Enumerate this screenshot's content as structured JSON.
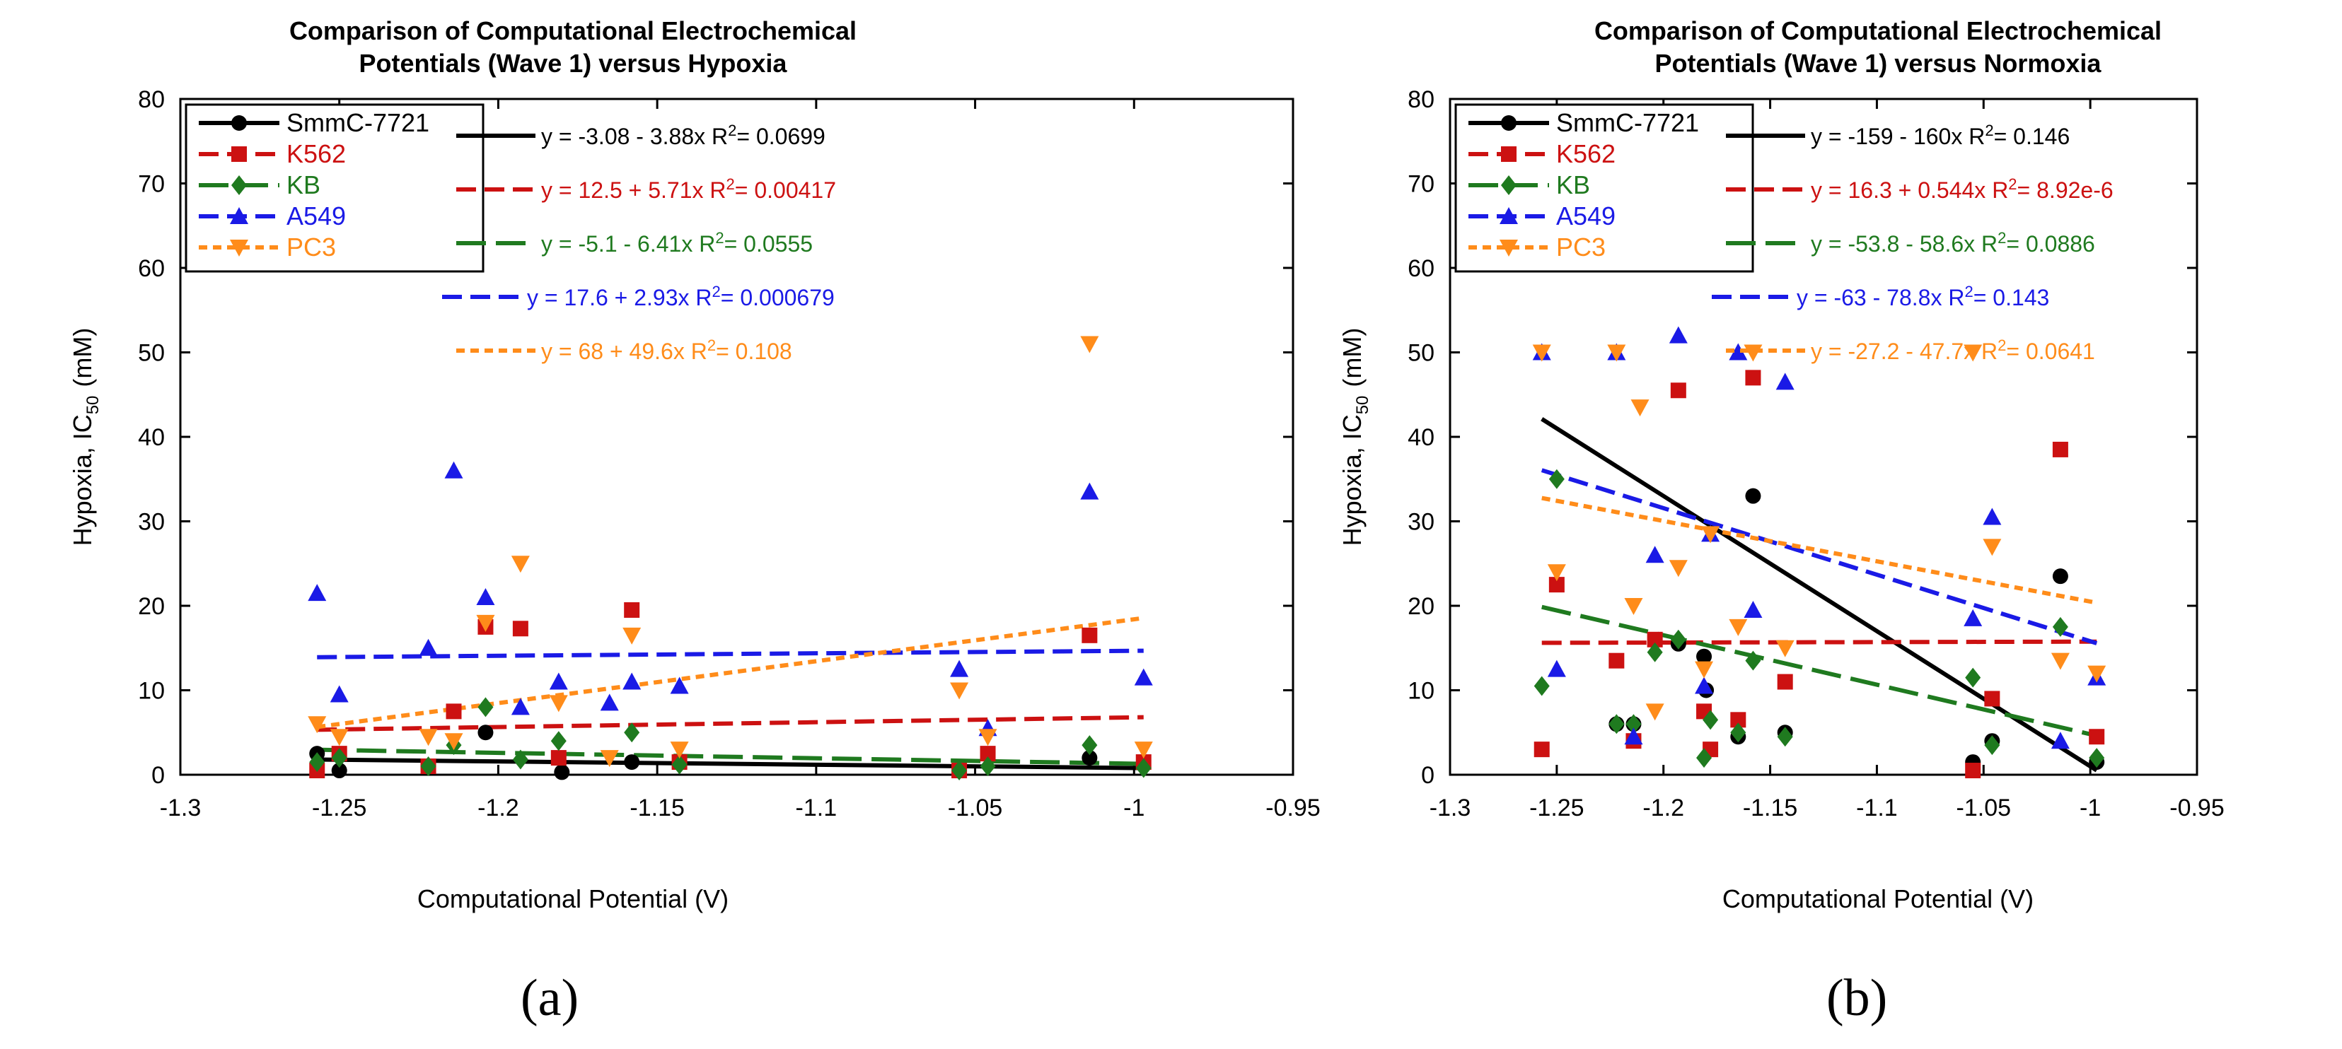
{
  "panels": [
    {
      "panel_label": "(a)",
      "title_lines": [
        "Comparison of Computational Electrochemical",
        "Potentials (Wave 1) versus Hypoxia"
      ],
      "xlabel": "Computational Potential (V)",
      "ylabel_main": "Hypoxia, IC",
      "ylabel_sub": "50",
      "ylabel_unit": "(mM)",
      "chart_data": {
        "type": "scatter",
        "title": "Comparison of Computational Electrochemical Potentials (Wave 1) versus Hypoxia",
        "xlabel": "Computational Potential (V)",
        "ylabel": "Hypoxia, IC50 (mM)",
        "xlim": [
          -1.3,
          -0.95
        ],
        "ylim": [
          0,
          80
        ],
        "x_ticks": [
          "-1.3",
          "-1.25",
          "-1.2",
          "-1.15",
          "-1.1",
          "-1.05",
          "-1",
          "-0.95"
        ],
        "y_ticks": [
          "0",
          "10",
          "20",
          "30",
          "40",
          "50",
          "60",
          "70",
          "80"
        ],
        "grid": false,
        "legend": "top-left",
        "series": [
          {
            "name": "SmmC-7721",
            "color": "#000000",
            "marker": "circle",
            "line": "solid",
            "x": [
              -1.257,
              -1.25,
              -1.222,
              -1.204,
              -1.18,
              -1.158,
              -1.014
            ],
            "y": [
              2.5,
              0.5,
              1,
              5,
              0.3,
              1.5,
              2
            ],
            "fit": {
              "intercept": -3.08,
              "slope": -3.88
            },
            "equation": "y = -3.08 - 3.88x",
            "r2_label": "R",
            "r2_value": "= 0.0699"
          },
          {
            "name": "K562",
            "color": "#cc1111",
            "marker": "square",
            "line": "dash",
            "x": [
              -1.257,
              -1.25,
              -1.222,
              -1.214,
              -1.204,
              -1.193,
              -1.181,
              -1.158,
              -1.143,
              -1.055,
              -1.046,
              -1.014,
              -0.997
            ],
            "y": [
              0.5,
              2.5,
              1,
              7.5,
              17.5,
              17.3,
              2,
              19.5,
              1.5,
              0.5,
              2.5,
              16.5,
              1.5
            ],
            "fit": {
              "intercept": 12.5,
              "slope": 5.71
            },
            "equation": "y = 12.5 + 5.71x",
            "r2_label": "R",
            "r2_value": "= 0.00417"
          },
          {
            "name": "KB",
            "color": "#1f7a1f",
            "marker": "diamond",
            "line": "longdash",
            "x": [
              -1.257,
              -1.25,
              -1.222,
              -1.214,
              -1.204,
              -1.193,
              -1.181,
              -1.158,
              -1.143,
              -1.055,
              -1.046,
              -1.014,
              -0.997
            ],
            "y": [
              1.5,
              2,
              1,
              3.5,
              8,
              1.8,
              4,
              5,
              1.2,
              0.5,
              1,
              3.5,
              0.8
            ],
            "fit": {
              "intercept": -5.1,
              "slope": -6.41
            },
            "equation": "y = -5.1 - 6.41x",
            "r2_label": "R",
            "r2_value": "= 0.0555"
          },
          {
            "name": "A549",
            "color": "#1a1ae6",
            "marker": "triangle-up",
            "line": "dash",
            "x": [
              -1.257,
              -1.25,
              -1.222,
              -1.214,
              -1.204,
              -1.193,
              -1.181,
              -1.165,
              -1.158,
              -1.143,
              -1.055,
              -1.046,
              -1.014,
              -0.997
            ],
            "y": [
              21.5,
              9.5,
              15,
              36,
              21,
              8,
              11,
              8.5,
              11,
              10.5,
              12.5,
              5.5,
              33.5,
              11.5
            ],
            "fit": {
              "intercept": 17.6,
              "slope": 2.93
            },
            "equation": "y = 17.6 + 2.93x",
            "r2_label": "R",
            "r2_value": "= 0.000679"
          },
          {
            "name": "PC3",
            "color": "#ff8c1a",
            "marker": "triangle-down",
            "line": "dot",
            "x": [
              -1.257,
              -1.25,
              -1.222,
              -1.214,
              -1.204,
              -1.193,
              -1.181,
              -1.165,
              -1.158,
              -1.143,
              -1.055,
              -1.046,
              -1.014,
              -0.997
            ],
            "y": [
              6,
              4.5,
              4.5,
              4,
              18,
              25,
              8.5,
              2,
              16.5,
              3,
              10,
              4.5,
              51,
              3
            ],
            "fit": {
              "intercept": 68,
              "slope": 49.6
            },
            "equation": "y = 68 + 49.6x",
            "r2_label": "R",
            "r2_value": "= 0.108"
          }
        ]
      }
    },
    {
      "panel_label": "(b)",
      "title_lines": [
        "Comparison of Computational Electrochemical",
        "Potentials (Wave 1) versus Normoxia"
      ],
      "xlabel": "Computational Potential (V)",
      "ylabel_main": "Hypoxia, IC",
      "ylabel_sub": "50",
      "ylabel_unit": "(mM)",
      "chart_data": {
        "type": "scatter",
        "title": "Comparison of Computational Electrochemical Potentials (Wave 1) versus Normoxia",
        "xlabel": "Computational Potential (V)",
        "ylabel": "Hypoxia, IC50 (mM)",
        "xlim": [
          -1.3,
          -0.95
        ],
        "ylim": [
          0,
          80
        ],
        "x_ticks": [
          "-1.3",
          "-1.25",
          "-1.2",
          "-1.15",
          "-1.1",
          "-1.05",
          "-1",
          "-0.95"
        ],
        "y_ticks": [
          "0",
          "10",
          "20",
          "30",
          "40",
          "50",
          "60",
          "70",
          "80"
        ],
        "grid": false,
        "legend": "top-left",
        "series": [
          {
            "name": "SmmC-7721",
            "color": "#000000",
            "marker": "circle",
            "line": "solid",
            "x": [
              -1.222,
              -1.214,
              -1.193,
              -1.181,
              -1.18,
              -1.165,
              -1.158,
              -1.143,
              -1.055,
              -1.046,
              -1.014,
              -0.997
            ],
            "y": [
              6,
              6,
              15.5,
              14,
              10,
              4.5,
              33,
              5,
              1.5,
              4,
              23.5,
              1.5
            ],
            "fit": {
              "intercept": -159,
              "slope": -160
            },
            "equation": "y = -159 - 160x",
            "r2_label": "R",
            "r2_value": "= 0.146"
          },
          {
            "name": "K562",
            "color": "#cc1111",
            "marker": "square",
            "line": "dash",
            "x": [
              -1.257,
              -1.25,
              -1.222,
              -1.214,
              -1.204,
              -1.193,
              -1.181,
              -1.178,
              -1.165,
              -1.158,
              -1.143,
              -1.055,
              -1.046,
              -1.014,
              -0.997
            ],
            "y": [
              3,
              22.5,
              13.5,
              4,
              16,
              45.5,
              7.5,
              3,
              6.5,
              47,
              11,
              0.5,
              9,
              38.5,
              4.5
            ],
            "fit": {
              "intercept": 16.3,
              "slope": 0.544
            },
            "equation": "y = 16.3 + 0.544x",
            "r2_label": "R",
            "r2_value": "= 8.92e-6"
          },
          {
            "name": "KB",
            "color": "#1f7a1f",
            "marker": "diamond",
            "line": "longdash",
            "x": [
              -1.257,
              -1.25,
              -1.222,
              -1.214,
              -1.204,
              -1.193,
              -1.181,
              -1.178,
              -1.165,
              -1.158,
              -1.143,
              -1.055,
              -1.046,
              -1.014,
              -0.997
            ],
            "y": [
              10.5,
              35,
              6,
              6,
              14.5,
              16,
              2,
              6.5,
              5,
              13.5,
              4.5,
              11.5,
              3.5,
              17.5,
              2
            ],
            "fit": {
              "intercept": -53.8,
              "slope": -58.6
            },
            "equation": "y = -53.8 - 58.6x",
            "r2_label": "R",
            "r2_value": "= 0.0886"
          },
          {
            "name": "A549",
            "color": "#1a1ae6",
            "marker": "triangle-up",
            "line": "dash",
            "x": [
              -1.257,
              -1.25,
              -1.222,
              -1.214,
              -1.204,
              -1.193,
              -1.181,
              -1.178,
              -1.165,
              -1.158,
              -1.143,
              -1.055,
              -1.046,
              -1.014,
              -0.997
            ],
            "y": [
              50,
              12.5,
              50,
              4.5,
              26,
              52,
              10.5,
              28.5,
              50,
              19.5,
              46.5,
              18.5,
              30.5,
              4,
              11.5
            ],
            "fit": {
              "intercept": -63,
              "slope": -78.8
            },
            "equation": "y = -63 - 78.8x",
            "r2_label": "R",
            "r2_value": "= 0.143"
          },
          {
            "name": "PC3",
            "color": "#ff8c1a",
            "marker": "triangle-down",
            "line": "dot",
            "x": [
              -1.257,
              -1.25,
              -1.222,
              -1.214,
              -1.211,
              -1.204,
              -1.193,
              -1.181,
              -1.178,
              -1.165,
              -1.158,
              -1.143,
              -1.055,
              -1.046,
              -1.014,
              -0.997
            ],
            "y": [
              50,
              24,
              50,
              20,
              43.5,
              7.5,
              24.5,
              12.5,
              28.5,
              17.5,
              50,
              15,
              50,
              27,
              13.5,
              12
            ],
            "fit": {
              "intercept": -27.2,
              "slope": -47.7
            },
            "equation": "y = -27.2 - 47.7x",
            "r2_label": "R",
            "r2_value": "= 0.0641"
          }
        ]
      }
    }
  ]
}
